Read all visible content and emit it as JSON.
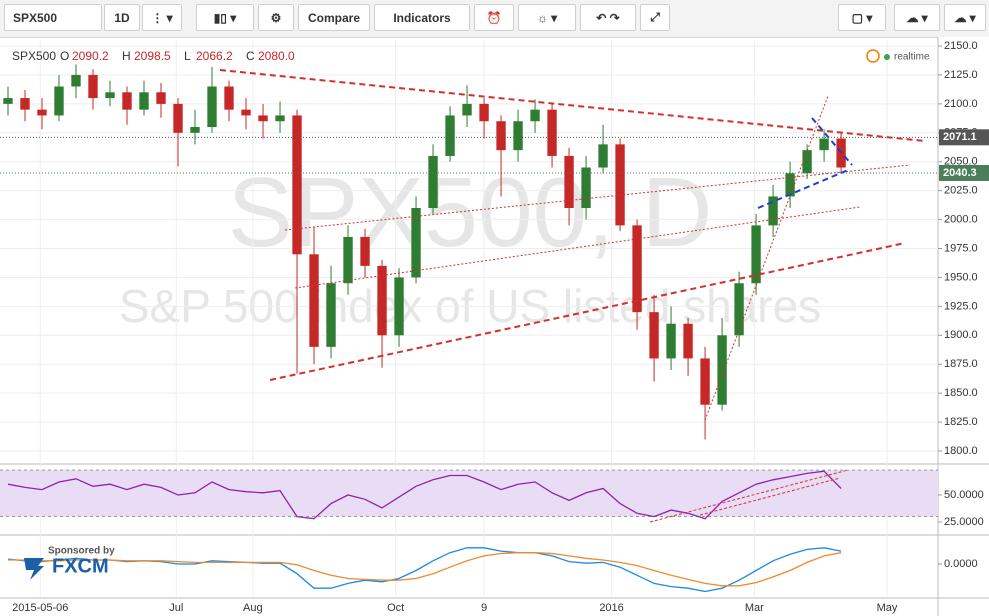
{
  "toolbar": {
    "symbol": "SPX500",
    "interval": "1D",
    "compare": "Compare",
    "indicators": "Indicators"
  },
  "legend": {
    "symbol": "SPX500",
    "items": [
      {
        "key": "O",
        "value": "2090.2"
      },
      {
        "key": "H",
        "value": "2098.5"
      },
      {
        "key": "L",
        "value": "2066.2"
      },
      {
        "key": "C",
        "value": "2080.0"
      }
    ],
    "status": "realtime"
  },
  "watermark": {
    "title": "SPX500, D",
    "subtitle": "S&P 500 index of US listed shares"
  },
  "sponsor": {
    "caption": "Sponsored by",
    "name": "FXCM"
  },
  "chart_data": [
    {
      "type": "candlestick",
      "up_color": "#2e7d32",
      "down_color": "#c62828",
      "xlim": [
        -0.47,
        54.7
      ],
      "xticks": [
        {
          "value": 1.9,
          "label": "2015-05-06"
        },
        {
          "value": 9.9,
          "label": "Jul"
        },
        {
          "value": 14.4,
          "label": "Aug"
        },
        {
          "value": 22.8,
          "label": "Oct"
        },
        {
          "value": 28,
          "label": "9"
        },
        {
          "value": 35.5,
          "label": "2016"
        },
        {
          "value": 43.9,
          "label": "Mar"
        },
        {
          "value": 51.7,
          "label": "May"
        }
      ],
      "ylim": [
        1790.5,
        2155.2
      ],
      "yticks": [
        {
          "value": 1800,
          "label": "1800.0"
        },
        {
          "value": 1825,
          "label": "1825.0"
        },
        {
          "value": 1850,
          "label": "1850.0"
        },
        {
          "value": 1875,
          "label": "1875.0"
        },
        {
          "value": 1900,
          "label": "1900.0"
        },
        {
          "value": 1925,
          "label": "1925.0"
        },
        {
          "value": 1950,
          "label": "1950.0"
        },
        {
          "value": 1975,
          "label": "1975.0"
        },
        {
          "value": 2000,
          "label": "2000.0"
        },
        {
          "value": 2025,
          "label": "2025.0"
        },
        {
          "value": 2050,
          "label": "2050.0"
        },
        {
          "value": 2075,
          "label": "2075.0"
        },
        {
          "value": 2100,
          "label": "2100.0"
        },
        {
          "value": 2125,
          "label": "2125.0"
        },
        {
          "value": 2150,
          "label": "2150.0"
        }
      ],
      "grid": true,
      "price_lines": [
        {
          "value": 2071.1,
          "color": "#555555"
        },
        {
          "value": 2040.3,
          "color": "#4a7d5a"
        }
      ],
      "ohlc": [
        [
          2100,
          2115,
          2090,
          2105
        ],
        [
          2105,
          2112,
          2085,
          2095
        ],
        [
          2095,
          2105,
          2078,
          2090
        ],
        [
          2090,
          2125,
          2085,
          2115
        ],
        [
          2115,
          2134,
          2105,
          2125
        ],
        [
          2125,
          2130,
          2095,
          2105
        ],
        [
          2105,
          2120,
          2098,
          2110
        ],
        [
          2110,
          2115,
          2082,
          2095
        ],
        [
          2095,
          2120,
          2090,
          2110
        ],
        [
          2110,
          2118,
          2088,
          2100
        ],
        [
          2100,
          2105,
          2046,
          2075
        ],
        [
          2075,
          2095,
          2065,
          2080
        ],
        [
          2080,
          2132,
          2075,
          2115
        ],
        [
          2115,
          2120,
          2085,
          2095
        ],
        [
          2095,
          2105,
          2078,
          2090
        ],
        [
          2090,
          2100,
          2070,
          2085
        ],
        [
          2085,
          2102,
          2075,
          2090
        ],
        [
          2090,
          2095,
          1867,
          1970
        ],
        [
          1970,
          1993,
          1875,
          1890
        ],
        [
          1890,
          1960,
          1880,
          1945
        ],
        [
          1945,
          1995,
          1935,
          1985
        ],
        [
          1985,
          1992,
          1950,
          1960
        ],
        [
          1960,
          1965,
          1872,
          1900
        ],
        [
          1900,
          1958,
          1890,
          1950
        ],
        [
          1950,
          2020,
          1945,
          2010
        ],
        [
          2010,
          2065,
          2005,
          2055
        ],
        [
          2055,
          2098,
          2050,
          2090
        ],
        [
          2090,
          2116,
          2080,
          2100
        ],
        [
          2100,
          2105,
          2070,
          2085
        ],
        [
          2085,
          2090,
          2020,
          2060
        ],
        [
          2060,
          2095,
          2050,
          2085
        ],
        [
          2085,
          2104,
          2075,
          2095
        ],
        [
          2095,
          2100,
          2045,
          2055
        ],
        [
          2055,
          2062,
          1995,
          2010
        ],
        [
          2010,
          2055,
          2000,
          2045
        ],
        [
          2045,
          2082,
          2040,
          2065
        ],
        [
          2065,
          2070,
          1990,
          1995
        ],
        [
          1995,
          2000,
          1905,
          1920
        ],
        [
          1920,
          1935,
          1860,
          1880
        ],
        [
          1880,
          1925,
          1870,
          1910
        ],
        [
          1910,
          1915,
          1865,
          1880
        ],
        [
          1880,
          1890,
          1810,
          1840
        ],
        [
          1840,
          1915,
          1835,
          1900
        ],
        [
          1900,
          1955,
          1890,
          1945
        ],
        [
          1945,
          2005,
          1935,
          1995
        ],
        [
          1995,
          2030,
          1985,
          2020
        ],
        [
          2020,
          2050,
          2010,
          2040
        ],
        [
          2040,
          2065,
          2035,
          2060
        ],
        [
          2060,
          2078,
          2050,
          2070
        ],
        [
          2070,
          2075,
          2040,
          2045
        ]
      ]
    },
    {
      "type": "line",
      "ylim": [
        15.7,
        75.9
      ],
      "yticks": [
        {
          "value": 50,
          "label": "50.0000"
        },
        {
          "value": 25,
          "label": "25.0000"
        }
      ],
      "bands": [
        30,
        73
      ],
      "band_color": "#e9dcf5",
      "series": [
        {
          "color": "#8e24aa",
          "values": [
            60,
            57,
            55,
            62,
            65,
            58,
            60,
            55,
            60,
            57,
            50,
            52,
            62,
            55,
            53,
            52,
            54,
            30,
            28,
            42,
            50,
            46,
            38,
            48,
            58,
            64,
            68,
            68,
            62,
            55,
            60,
            62,
            52,
            45,
            52,
            56,
            42,
            33,
            30,
            36,
            33,
            28,
            44,
            52,
            60,
            64,
            67,
            70,
            72,
            56
          ]
        }
      ]
    },
    {
      "type": "line",
      "ylim": [
        -39.6,
        33.4
      ],
      "yticks": [
        {
          "value": 0,
          "label": "0.0000"
        }
      ],
      "series": [
        {
          "color": "#1e88e5",
          "values": [
            6,
            4,
            3,
            5,
            7,
            5,
            5,
            3,
            4,
            3,
            0,
            0,
            4,
            3,
            2,
            1,
            1,
            -12,
            -30,
            -30,
            -24,
            -20,
            -22,
            -18,
            -8,
            4,
            14,
            20,
            20,
            16,
            14,
            14,
            10,
            3,
            1,
            2,
            -4,
            -14,
            -24,
            -28,
            -30,
            -34,
            -30,
            -20,
            -8,
            4,
            12,
            18,
            20,
            16
          ]
        },
        {
          "color": "#ef8a2c",
          "values": [
            5,
            5,
            4,
            4,
            5,
            5,
            5,
            4,
            4,
            4,
            3,
            2,
            2,
            2,
            2,
            2,
            2,
            -1,
            -8,
            -14,
            -18,
            -19,
            -20,
            -20,
            -18,
            -12,
            -4,
            4,
            10,
            13,
            14,
            14,
            13,
            10,
            7,
            5,
            2,
            -2,
            -8,
            -14,
            -19,
            -24,
            -27,
            -27,
            -23,
            -16,
            -8,
            2,
            10,
            14
          ]
        }
      ]
    }
  ]
}
